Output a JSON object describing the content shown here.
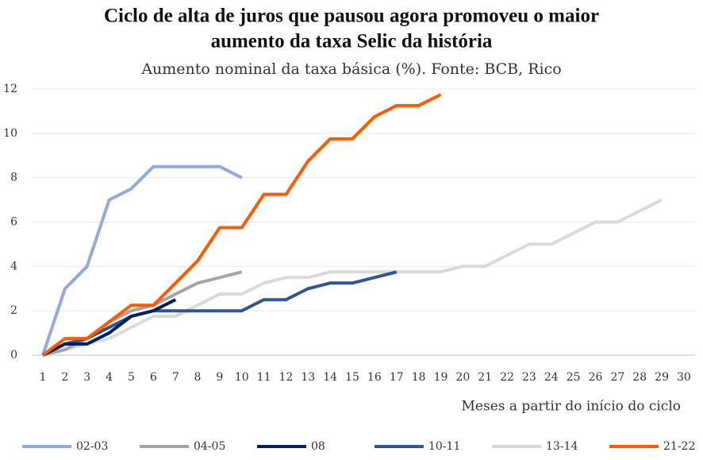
{
  "chart_data": {
    "type": "line",
    "title": [
      "Ciclo de alta de juros que pausou agora promoveu o maior",
      "aumento da taxa Selic da história"
    ],
    "subtitle": "Aumento nominal da taxa básica (%). Fonte: BCB, Rico",
    "x_label": "Meses a partir do início do ciclo",
    "categories": [
      "1",
      "2",
      "3",
      "4",
      "5",
      "6",
      "7",
      "8",
      "9",
      "10",
      "11",
      "12",
      "13",
      "14",
      "15",
      "16",
      "17",
      "18",
      "19",
      "20",
      "21",
      "22",
      "23",
      "24",
      "25",
      "26",
      "27",
      "28",
      "29",
      "30"
    ],
    "ylim": [
      0,
      12
    ],
    "yticks": [
      0,
      2,
      4,
      6,
      8,
      10,
      12
    ],
    "grid": true,
    "legend": "bottom",
    "series": [
      {
        "name": "02-03",
        "color": "#8faadc",
        "values": [
          0,
          3,
          4,
          7,
          7.5,
          8.5,
          8.5,
          8.5,
          8.5,
          8,
          null,
          null,
          null,
          null,
          null,
          null,
          null,
          null,
          null,
          null,
          null,
          null,
          null,
          null,
          null,
          null,
          null,
          null,
          null,
          null
        ]
      },
      {
        "name": "04-05",
        "color": "#a5a5a5",
        "values": [
          0,
          0.25,
          0.75,
          1.5,
          2,
          2.25,
          2.75,
          3.25,
          3.5,
          3.75,
          null,
          null,
          null,
          null,
          null,
          null,
          null,
          null,
          null,
          null,
          null,
          null,
          null,
          null,
          null,
          null,
          null,
          null,
          null,
          null
        ]
      },
      {
        "name": "08",
        "color": "#002060",
        "values": [
          0,
          0.5,
          0.5,
          1,
          1.75,
          2,
          2.5,
          null,
          null,
          null,
          null,
          null,
          null,
          null,
          null,
          null,
          null,
          null,
          null,
          null,
          null,
          null,
          null,
          null,
          null,
          null,
          null,
          null,
          null,
          null
        ]
      },
      {
        "name": "10-11",
        "color": "#2f5597",
        "values": [
          0,
          0.5,
          0.75,
          1.25,
          1.75,
          2,
          2,
          2,
          2,
          2,
          2.5,
          2.5,
          3,
          3.25,
          3.25,
          3.5,
          3.75,
          null,
          null,
          null,
          null,
          null,
          null,
          null,
          null,
          null,
          null,
          null,
          null,
          null
        ]
      },
      {
        "name": "13-14",
        "color": "#d9d9d9",
        "values": [
          0,
          0.25,
          0.5,
          0.75,
          1.25,
          1.75,
          1.75,
          2.25,
          2.75,
          2.75,
          3.25,
          3.5,
          3.5,
          3.75,
          3.75,
          3.75,
          3.75,
          3.75,
          3.75,
          4,
          4,
          4.5,
          5,
          5,
          5.5,
          6,
          6,
          6.5,
          7,
          null
        ]
      },
      {
        "name": "21-22",
        "color": "#ff5a00",
        "values": [
          0,
          0.75,
          0.75,
          1.5,
          2.25,
          2.25,
          3.25,
          4.25,
          5.75,
          5.75,
          7.25,
          7.25,
          8.75,
          9.75,
          9.75,
          10.75,
          11.25,
          11.25,
          11.75,
          null,
          null,
          null,
          null,
          null,
          null,
          null,
          null,
          null,
          null,
          null
        ]
      }
    ]
  }
}
